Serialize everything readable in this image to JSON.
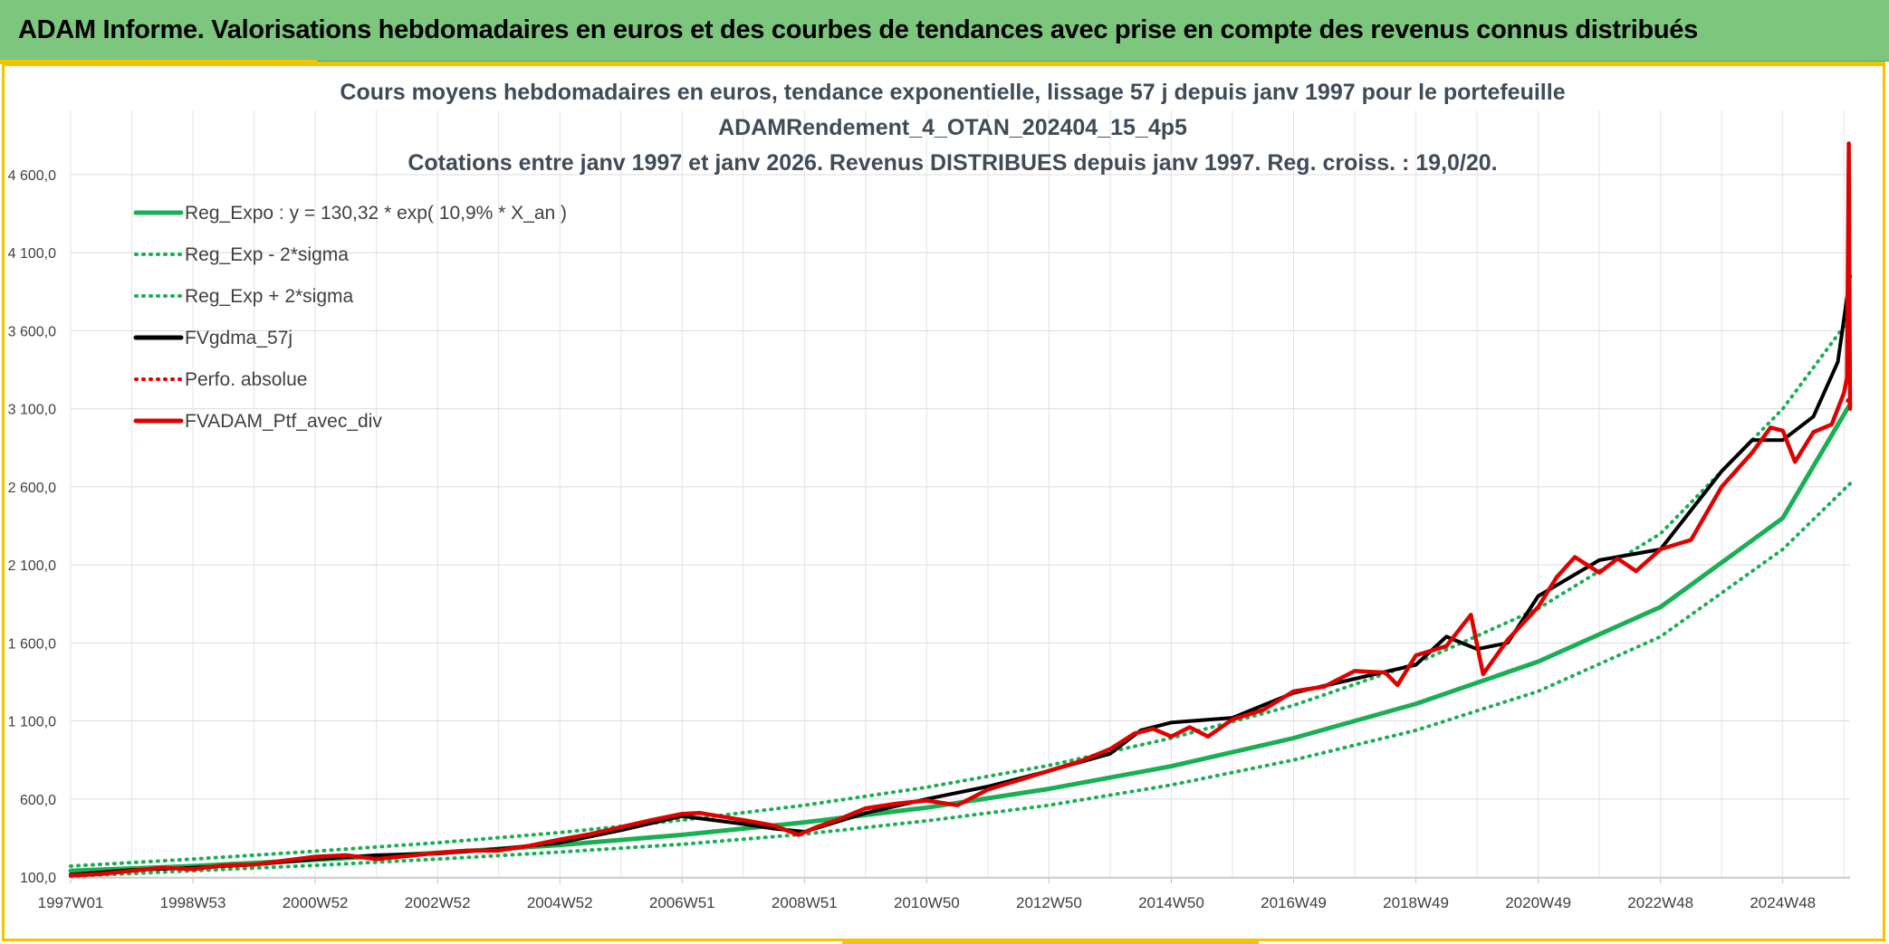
{
  "header": {
    "banner": "ADAM Informe. Valorisations hebdomadaires en euros et des courbes de tendances avec prise en compte des revenus connus distribués"
  },
  "colors": {
    "banner_bg": "#7dc67d",
    "frame_accent": "#f2c500",
    "reg_expo": "#1aaf54",
    "fvgdma": "#000000",
    "perfo": "#e00000",
    "portfolio": "#e00000"
  },
  "chart_data": {
    "type": "line",
    "title": [
      "Cours moyens hebdomadaires en euros, tendance exponentielle, lissage 57 j depuis janv 1997 pour le portefeuille",
      "ADAMRendement_4_OTAN_202404_15_4p5",
      "Cotations entre janv 1997 et janv 2026. Revenus DISTRIBUES depuis janv 1997. Reg. croiss. : 19,0/20."
    ],
    "xlabel": "",
    "ylabel": "",
    "x_range": [
      1997.0,
      2026.1
    ],
    "ylim": [
      100,
      4700
    ],
    "y_ticks": [
      "100,0",
      "600,0",
      "1 100,0",
      "1 600,0",
      "2 100,0",
      "2 600,0",
      "3 100,0",
      "3 600,0",
      "4 100,0",
      "4 600,0"
    ],
    "y_tick_values": [
      100,
      600,
      1100,
      1600,
      2100,
      2600,
      3100,
      3600,
      4100,
      4600
    ],
    "x_ticks": [
      "1997W01",
      "1998W53",
      "2000W52",
      "2002W52",
      "2004W52",
      "2006W51",
      "2008W51",
      "2010W50",
      "2012W50",
      "2014W50",
      "2016W49",
      "2018W49",
      "2020W49",
      "2022W48",
      "2024W48"
    ],
    "x_tick_years": [
      1997.0,
      1999.0,
      2001.0,
      2003.0,
      2005.0,
      2007.0,
      2009.0,
      2011.0,
      2013.0,
      2015.0,
      2017.0,
      2019.0,
      2021.0,
      2023.0,
      2025.0
    ],
    "grid": true,
    "legend_position": "top-left",
    "legend": [
      {
        "label": "Reg_Expo : y = 130,32 * exp( 10,9% *  X_an )",
        "style": "solid",
        "color": "#1aaf54"
      },
      {
        "label": "Reg_Exp - 2*sigma",
        "style": "dotted",
        "color": "#1aaf54"
      },
      {
        "label": "Reg_Exp + 2*sigma",
        "style": "dotted",
        "color": "#1aaf54"
      },
      {
        "label": "FVgdma_57j",
        "style": "solid",
        "color": "#000000"
      },
      {
        "label": "Perfo. absolue",
        "style": "dotted",
        "color": "#e00000"
      },
      {
        "label": "FVADAM_Ptf_avec_div",
        "style": "solid",
        "color": "#e00000"
      }
    ],
    "series": [
      {
        "name": "Reg_Expo : y = 130,32 * exp( 10,9% *  X_an )",
        "x": [
          1997.0,
          1999.0,
          2001.0,
          2003.0,
          2005.0,
          2007.0,
          2009.0,
          2011.0,
          2013.0,
          2015.0,
          2017.0,
          2019.0,
          2021.0,
          2023.0,
          2025.0,
          2026.1
        ],
        "values": [
          140,
          170,
          210,
          255,
          305,
          370,
          450,
          545,
          665,
          810,
          990,
          1210,
          1480,
          1830,
          2400,
          3130
        ]
      },
      {
        "name": "Reg_Exp - 2*sigma",
        "x": [
          1997.0,
          1999.0,
          2001.0,
          2003.0,
          2005.0,
          2007.0,
          2009.0,
          2011.0,
          2013.0,
          2015.0,
          2017.0,
          2019.0,
          2021.0,
          2023.0,
          2025.0,
          2026.1
        ],
        "values": [
          105,
          140,
          175,
          215,
          260,
          310,
          375,
          460,
          560,
          690,
          850,
          1040,
          1290,
          1640,
          2200,
          2620
        ]
      },
      {
        "name": "Reg_Exp + 2*sigma",
        "x": [
          1997.0,
          1999.0,
          2001.0,
          2003.0,
          2005.0,
          2007.0,
          2009.0,
          2011.0,
          2013.0,
          2015.0,
          2017.0,
          2019.0,
          2021.0,
          2023.0,
          2025.0,
          2026.1
        ],
        "values": [
          170,
          215,
          265,
          320,
          385,
          465,
          560,
          675,
          815,
          990,
          1200,
          1470,
          1820,
          2300,
          3100,
          3680
        ]
      },
      {
        "name": "FVgdma_57j",
        "x": [
          1997.0,
          1998.0,
          1999.0,
          2000.0,
          2001.0,
          2002.0,
          2003.0,
          2004.0,
          2005.0,
          2006.0,
          2007.0,
          2008.0,
          2008.5,
          2009.0,
          2010.0,
          2011.0,
          2012.0,
          2013.0,
          2014.0,
          2014.5,
          2015.0,
          2016.0,
          2017.0,
          2018.0,
          2019.0,
          2019.5,
          2020.0,
          2020.5,
          2021.0,
          2022.0,
          2023.0,
          2024.0,
          2024.5,
          2025.0,
          2025.5,
          2025.9,
          2026.1
        ],
        "values": [
          115,
          145,
          160,
          180,
          215,
          240,
          250,
          280,
          320,
          400,
          490,
          440,
          410,
          390,
          510,
          600,
          680,
          780,
          890,
          1040,
          1090,
          1120,
          1280,
          1370,
          1460,
          1640,
          1560,
          1600,
          1900,
          2130,
          2200,
          2700,
          2900,
          2900,
          3050,
          3400,
          3950
        ]
      },
      {
        "name": "Perfo. absolue",
        "x": [
          2026.06,
          2026.1
        ],
        "values": [
          3150,
          3200
        ]
      },
      {
        "name": "FVADAM_Ptf_avec_div",
        "x": [
          1997.0,
          1997.5,
          1998.0,
          1998.5,
          1999.0,
          1999.5,
          2000.0,
          2000.5,
          2001.0,
          2001.5,
          2002.0,
          2002.5,
          2003.0,
          2003.5,
          2004.0,
          2004.5,
          2005.0,
          2005.5,
          2006.0,
          2006.5,
          2007.0,
          2007.3,
          2007.6,
          2008.0,
          2008.5,
          2008.9,
          2009.2,
          2009.5,
          2010.0,
          2010.5,
          2011.0,
          2011.5,
          2012.0,
          2012.5,
          2013.0,
          2013.5,
          2014.0,
          2014.4,
          2014.7,
          2015.0,
          2015.3,
          2015.6,
          2016.0,
          2016.5,
          2017.0,
          2017.5,
          2018.0,
          2018.5,
          2018.7,
          2019.0,
          2019.5,
          2019.9,
          2020.1,
          2020.5,
          2021.0,
          2021.3,
          2021.6,
          2022.0,
          2022.3,
          2022.6,
          2023.0,
          2023.5,
          2024.0,
          2024.5,
          2024.8,
          2025.0,
          2025.2,
          2025.5,
          2025.8,
          2026.0,
          2026.05,
          2026.08,
          2026.1
        ],
        "values": [
          110,
          120,
          140,
          160,
          150,
          175,
          180,
          205,
          230,
          240,
          215,
          235,
          255,
          270,
          270,
          300,
          340,
          375,
          420,
          465,
          505,
          510,
          490,
          465,
          430,
          370,
          420,
          460,
          540,
          570,
          590,
          560,
          660,
          720,
          780,
          840,
          920,
          1020,
          1050,
          1000,
          1060,
          1000,
          1110,
          1170,
          1290,
          1320,
          1420,
          1410,
          1330,
          1520,
          1580,
          1780,
          1400,
          1620,
          1830,
          2020,
          2150,
          2050,
          2140,
          2060,
          2200,
          2260,
          2600,
          2820,
          2980,
          2960,
          2760,
          2950,
          3000,
          3200,
          3300,
          4800,
          3100
        ]
      }
    ]
  }
}
